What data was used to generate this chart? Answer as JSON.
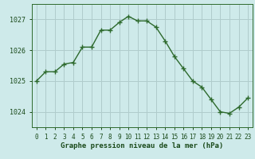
{
  "x": [
    0,
    1,
    2,
    3,
    4,
    5,
    6,
    7,
    8,
    9,
    10,
    11,
    12,
    13,
    14,
    15,
    16,
    17,
    18,
    19,
    20,
    21,
    22,
    23
  ],
  "y": [
    1025.0,
    1025.3,
    1025.3,
    1025.55,
    1025.6,
    1026.1,
    1026.1,
    1026.65,
    1026.65,
    1026.9,
    1027.1,
    1026.95,
    1026.95,
    1026.75,
    1026.3,
    1025.8,
    1025.4,
    1025.0,
    1024.8,
    1024.4,
    1024.0,
    1023.95,
    1024.15,
    1024.45
  ],
  "line_color": "#2d6a2d",
  "marker_color": "#2d6a2d",
  "bg_color": "#ceeaea",
  "grid_color": "#b0cccc",
  "axis_color": "#2d6a2d",
  "tick_color": "#1a4a1a",
  "title": "Graphe pression niveau de la mer (hPa)",
  "title_color": "#1a4a1a",
  "ylim": [
    1023.5,
    1027.5
  ],
  "yticks": [
    1024,
    1025,
    1026,
    1027
  ],
  "xticks": [
    0,
    1,
    2,
    3,
    4,
    5,
    6,
    7,
    8,
    9,
    10,
    11,
    12,
    13,
    14,
    15,
    16,
    17,
    18,
    19,
    20,
    21,
    22,
    23
  ],
  "xtick_labels": [
    "0",
    "1",
    "2",
    "3",
    "4",
    "5",
    "6",
    "7",
    "8",
    "9",
    "10",
    "11",
    "12",
    "13",
    "14",
    "15",
    "16",
    "17",
    "18",
    "19",
    "20",
    "21",
    "22",
    "23"
  ],
  "font_family": "monospace"
}
